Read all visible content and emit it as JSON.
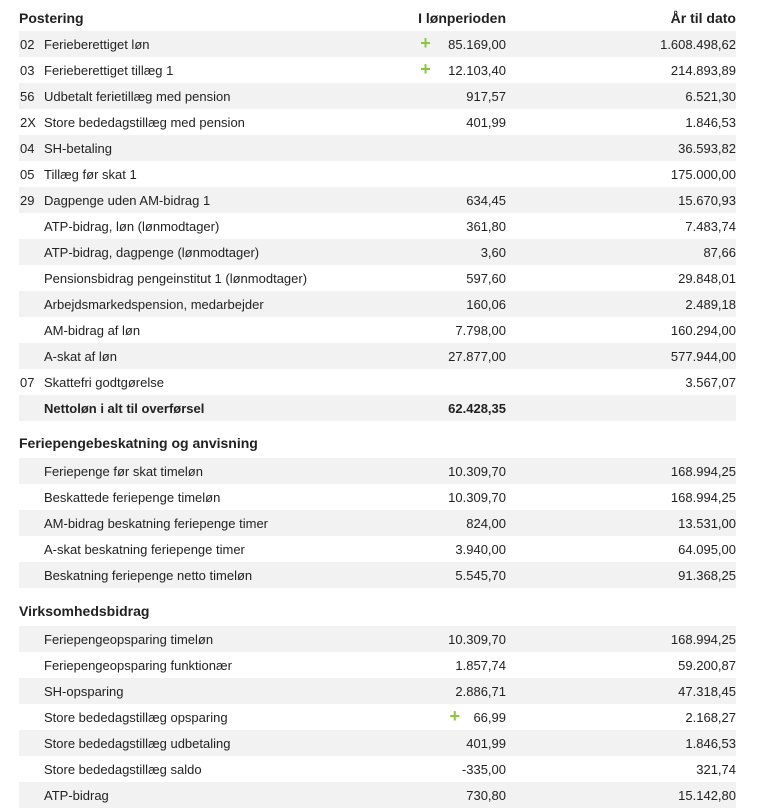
{
  "header": {
    "col_posting": "Postering",
    "col_period": "I lønperioden",
    "col_ytd": "År til dato"
  },
  "postings": [
    {
      "code": "02",
      "label": "Ferieberettiget løn",
      "period": "85.169,00",
      "ytd": "1.608.498,62",
      "plus": true
    },
    {
      "code": "03",
      "label": "Ferieberettiget tillæg 1",
      "period": "12.103,40",
      "ytd": "214.893,89",
      "plus": true
    },
    {
      "code": "56",
      "label": "Udbetalt ferietillæg med pension",
      "period": "917,57",
      "ytd": "6.521,30",
      "plus": false
    },
    {
      "code": "2X",
      "label": "Store bededagstillæg med pension",
      "period": "401,99",
      "ytd": "1.846,53",
      "plus": false
    },
    {
      "code": "04",
      "label": "SH-betaling",
      "period": "",
      "ytd": "36.593,82",
      "plus": false
    },
    {
      "code": "05",
      "label": "Tillæg før skat 1",
      "period": "",
      "ytd": "175.000,00",
      "plus": false
    },
    {
      "code": "29",
      "label": "Dagpenge uden AM-bidrag 1",
      "period": "634,45",
      "ytd": "15.670,93",
      "plus": false
    },
    {
      "code": "",
      "label": "ATP-bidrag, løn (lønmodtager)",
      "period": "361,80",
      "ytd": "7.483,74",
      "plus": false
    },
    {
      "code": "",
      "label": "ATP-bidrag, dagpenge (lønmodtager)",
      "period": "3,60",
      "ytd": "87,66",
      "plus": false
    },
    {
      "code": "",
      "label": "Pensionsbidrag pengeinstitut 1 (lønmodtager)",
      "period": "597,60",
      "ytd": "29.848,01",
      "plus": false
    },
    {
      "code": "",
      "label": "Arbejdsmarkedspension, medarbejder",
      "period": "160,06",
      "ytd": "2.489,18",
      "plus": false
    },
    {
      "code": "",
      "label": "AM-bidrag af løn",
      "period": "7.798,00",
      "ytd": "160.294,00",
      "plus": false
    },
    {
      "code": "",
      "label": "A-skat af løn",
      "period": "27.877,00",
      "ytd": "577.944,00",
      "plus": false
    },
    {
      "code": "07",
      "label": "Skattefri godtgørelse",
      "period": "",
      "ytd": "3.567,07",
      "plus": false
    },
    {
      "code": "",
      "label": "Nettoløn i alt til overførsel",
      "period": "62.428,35",
      "ytd": "",
      "plus": false,
      "bold": true
    }
  ],
  "section_holiday": {
    "title": "Feriepengebeskatning og anvisning",
    "rows": [
      {
        "label": "Feriepenge før skat timeløn",
        "period": "10.309,70",
        "ytd": "168.994,25"
      },
      {
        "label": "Beskattede feriepenge timeløn",
        "period": "10.309,70",
        "ytd": "168.994,25"
      },
      {
        "label": "AM-bidrag beskatning feriepenge timer",
        "period": "824,00",
        "ytd": "13.531,00"
      },
      {
        "label": "A-skat beskatning feriepenge timer",
        "period": "3.940,00",
        "ytd": "64.095,00"
      },
      {
        "label": "Beskatning feriepenge netto timeløn",
        "period": "5.545,70",
        "ytd": "91.368,25"
      }
    ]
  },
  "section_company": {
    "title": "Virksomhedsbidrag",
    "rows": [
      {
        "label": "Feriepengeopsparing timeløn",
        "period": "10.309,70",
        "ytd": "168.994,25",
        "plus": false
      },
      {
        "label": "Feriepengeopsparing funktionær",
        "period": "1.857,74",
        "ytd": "59.200,87",
        "plus": false
      },
      {
        "label": "SH-opsparing",
        "period": "2.886,71",
        "ytd": "47.318,45",
        "plus": false
      },
      {
        "label": "Store bededagstillæg opsparing",
        "period": "66,99",
        "ytd": "2.168,27",
        "plus": true
      },
      {
        "label": "Store bededagstillæg udbetaling",
        "period": "401,99",
        "ytd": "1.846,53",
        "plus": false
      },
      {
        "label": "Store bededagstillæg saldo",
        "period": "-335,00",
        "ytd": "321,74",
        "plus": false
      },
      {
        "label": "ATP-bidrag",
        "period": "730,80",
        "ytd": "15.142,80",
        "plus": false
      }
    ]
  },
  "plus_symbol": "+",
  "colors": {
    "plus": "#8cc63f",
    "shade": "#f2f2f2"
  }
}
